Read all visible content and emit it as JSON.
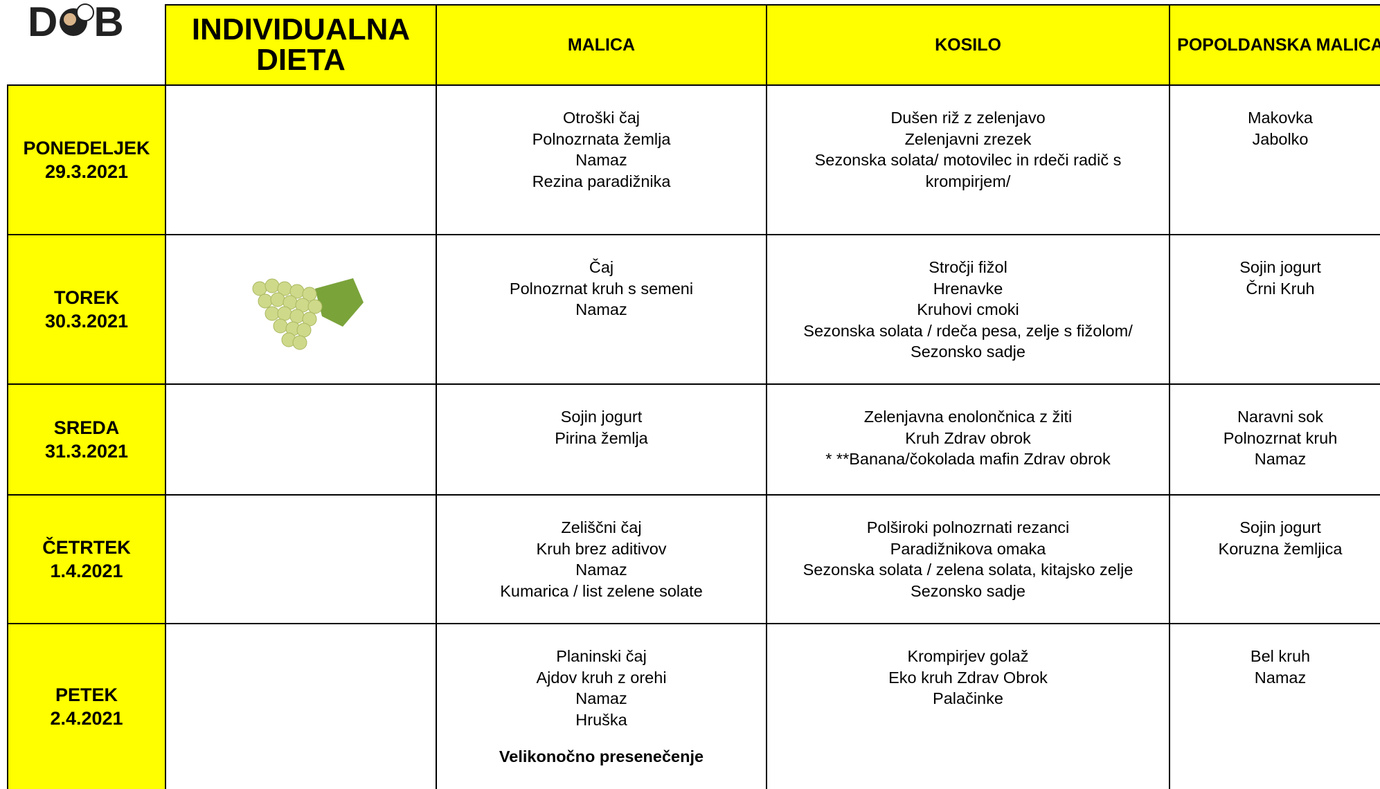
{
  "header": {
    "logo_left": "D",
    "logo_right": "B",
    "title": "INDIVIDUALNA DIETA",
    "columns": [
      "MALICA",
      "KOSILO",
      "POPOLDANSKA MALICA"
    ]
  },
  "table": {
    "rows": [
      {
        "day": "PONEDELJEK",
        "date": "29.3.2021",
        "malica": [
          "Otroški čaj",
          "Polnozrnata žemlja",
          "Namaz",
          "Rezina  paradižnika"
        ],
        "kosilo": [
          "Dušen riž z zelenjavo",
          "Zelenjavni zrezek",
          "Sezonska solata/ motovilec in rdeči radič s krompirjem/"
        ],
        "popoldanska": [
          "Makovka",
          "Jabolko"
        ]
      },
      {
        "day": "TOREK",
        "date": "30.3.2021",
        "malica": [
          "Čaj",
          "Polnozrnat kruh s semeni",
          "Namaz"
        ],
        "kosilo": [
          "Stročji fižol",
          "Hrenavke",
          "Kruhovi cmoki",
          "Sezonska solata / rdeča pesa, zelje s fižolom/",
          "Sezonsko sadje"
        ],
        "popoldanska": [
          "Sojin jogurt",
          "Črni Kruh"
        ]
      },
      {
        "day": "SREDA",
        "date": "31.3.2021",
        "malica": [
          "Sojin jogurt",
          "Pirina žemlja"
        ],
        "kosilo": [
          "Zelenjavna enolončnica z žiti",
          "Kruh Zdrav obrok",
          "* **Banana/čokolada mafin Zdrav obrok"
        ],
        "popoldanska": [
          "Naravni sok",
          "Polnozrnat kruh",
          "Namaz"
        ]
      },
      {
        "day": "ČETRTEK",
        "date": "1.4.2021",
        "malica": [
          "Zeliščni čaj",
          "Kruh brez aditivov",
          "Namaz",
          "Kumarica / list zelene solate"
        ],
        "kosilo": [
          "Polširoki polnozrnati rezanci",
          "Paradižnikova omaka",
          "Sezonska solata / zelena solata, kitajsko zelje",
          "Sezonsko sadje"
        ],
        "popoldanska": [
          "Sojin jogurt",
          "Koruzna žemljica"
        ]
      },
      {
        "day": "PETEK",
        "date": "2.4.2021",
        "malica": [
          "Planinski čaj",
          "Ajdov kruh z orehi",
          "Namaz",
          "Hruška"
        ],
        "note": "Velikonočno presenečenje",
        "kosilo": [
          "Krompirjev golaž",
          "Eko kruh Zdrav Obrok",
          "Palačinke"
        ],
        "popoldanska": [
          "Bel kruh",
          "Namaz"
        ]
      }
    ]
  }
}
